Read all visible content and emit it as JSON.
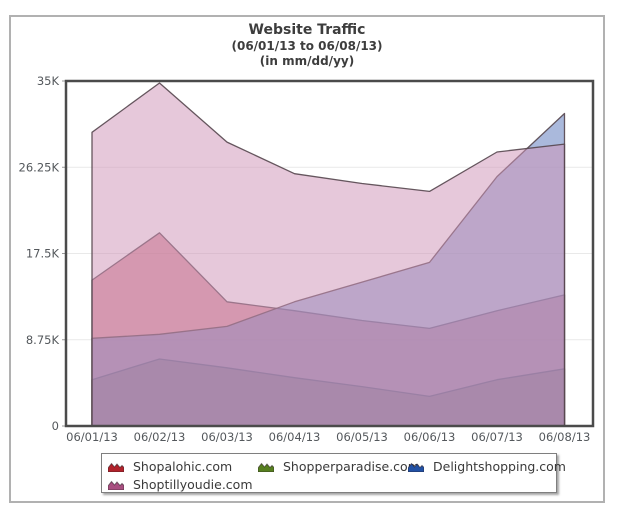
{
  "title": {
    "main": "Website Traffic",
    "sub1": "(06/01/13 to 06/08/13)",
    "sub2": "(in mm/dd/yy)"
  },
  "chart_data": {
    "type": "area",
    "mode": "overlapping-transparent-areas",
    "title": "Website Traffic",
    "subtitle": "(06/01/13 to 06/08/13) (in mm/dd/yy)",
    "xlabel": "",
    "ylabel": "",
    "ylim": [
      0,
      35000
    ],
    "grid": true,
    "legend_position": "bottom",
    "categories": [
      "06/01/13",
      "06/02/13",
      "06/03/13",
      "06/04/13",
      "06/05/13",
      "06/06/13",
      "06/07/13",
      "06/08/13"
    ],
    "yticks": {
      "labels": [
        "0",
        "8.75K",
        "17.5K",
        "26.25K",
        "35K"
      ],
      "values": [
        0,
        8750,
        17500,
        26250,
        35000
      ]
    },
    "series": [
      {
        "name": "Shopalohic.com",
        "legend_color": "#b1222b",
        "fill": "rgba(190,75,95,0.55)",
        "stroke": "rgba(85,70,78,0.9)",
        "values": [
          14800,
          19600,
          12600,
          11700,
          10700,
          9900,
          11700,
          13300
        ]
      },
      {
        "name": "Shopperparadise.com",
        "legend_color": "#567f1f",
        "fill": "rgba(70,70,45,0.4)",
        "stroke": "rgba(85,70,78,0.9)",
        "values": [
          4700,
          6800,
          5900,
          4900,
          4000,
          3000,
          4700,
          5800
        ]
      },
      {
        "name": "Delightshopping.com",
        "legend_color": "#2151a5",
        "fill": "rgba(100,128,192,0.55)",
        "stroke": "rgba(85,70,78,0.9)",
        "values": [
          8900,
          9300,
          10100,
          12600,
          14600,
          16600,
          25300,
          31700
        ]
      },
      {
        "name": "Shoptillyoudie.com",
        "legend_color": "#a84f80",
        "fill": "rgba(208,150,185,0.52)",
        "stroke": "rgba(85,70,78,0.9)",
        "values": [
          29800,
          34800,
          28800,
          25600,
          24600,
          23800,
          27800,
          28600
        ]
      }
    ],
    "colors": {
      "plot_border": "#4b4b4b",
      "gridline": "#e9e9e9",
      "axis_text": "#54585c",
      "frame_border": "#b1b1b1"
    }
  }
}
